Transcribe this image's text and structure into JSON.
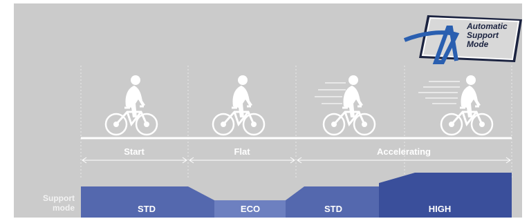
{
  "logo": {
    "lines": [
      "Automatic",
      "Support",
      "Mode"
    ]
  },
  "phases": [
    "Start",
    "Flat",
    "Accelerating"
  ],
  "support_label": [
    "Support",
    "mode"
  ],
  "modes": [
    "STD",
    "ECO",
    "STD",
    "HIGH"
  ]
}
